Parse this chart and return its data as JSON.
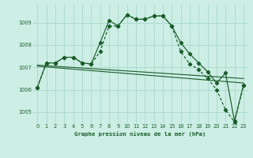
{
  "bg_color": "#cceee4",
  "grid_color": "#aad8cc",
  "line_color": "#1a5c2a",
  "xlabel": "Graphe pression niveau de la mer (hPa)",
  "ylim": [
    1004.5,
    1009.8
  ],
  "xlim": [
    -0.5,
    23.5
  ],
  "yticks": [
    1005,
    1006,
    1007,
    1008,
    1009
  ],
  "xticks": [
    0,
    1,
    2,
    3,
    4,
    5,
    6,
    7,
    8,
    9,
    10,
    11,
    12,
    13,
    14,
    15,
    16,
    17,
    18,
    19,
    20,
    21,
    22,
    23
  ],
  "series1_x": [
    0,
    1,
    2,
    3,
    4,
    5,
    6,
    7,
    8,
    9,
    10,
    11,
    12,
    13,
    14,
    15,
    16,
    17,
    18,
    19,
    20,
    21,
    22,
    23
  ],
  "series1_y": [
    1006.1,
    1007.2,
    1007.2,
    1007.45,
    1007.45,
    1007.2,
    1007.15,
    1008.1,
    1009.1,
    1008.85,
    1009.35,
    1009.15,
    1009.15,
    1009.3,
    1009.3,
    1008.85,
    1008.1,
    1007.6,
    1007.2,
    1006.8,
    1006.3,
    1006.75,
    1004.6,
    1006.2
  ],
  "series2_x": [
    0,
    1,
    2,
    3,
    4,
    5,
    6,
    7,
    8,
    9,
    10,
    11,
    12,
    13,
    14,
    15,
    16,
    17,
    18,
    19,
    20,
    21,
    22,
    23
  ],
  "series2_y": [
    1006.1,
    1007.2,
    1007.2,
    1007.45,
    1007.45,
    1007.2,
    1007.15,
    1007.7,
    1008.85,
    1008.85,
    1009.35,
    1009.15,
    1009.15,
    1009.3,
    1009.3,
    1008.85,
    1007.7,
    1007.15,
    1006.9,
    1006.5,
    1006.0,
    1005.1,
    1004.55,
    1006.2
  ],
  "trend1_x": [
    0,
    23
  ],
  "trend1_y": [
    1007.05,
    1006.3
  ],
  "trend2_x": [
    0,
    23
  ],
  "trend2_y": [
    1007.1,
    1006.5
  ]
}
